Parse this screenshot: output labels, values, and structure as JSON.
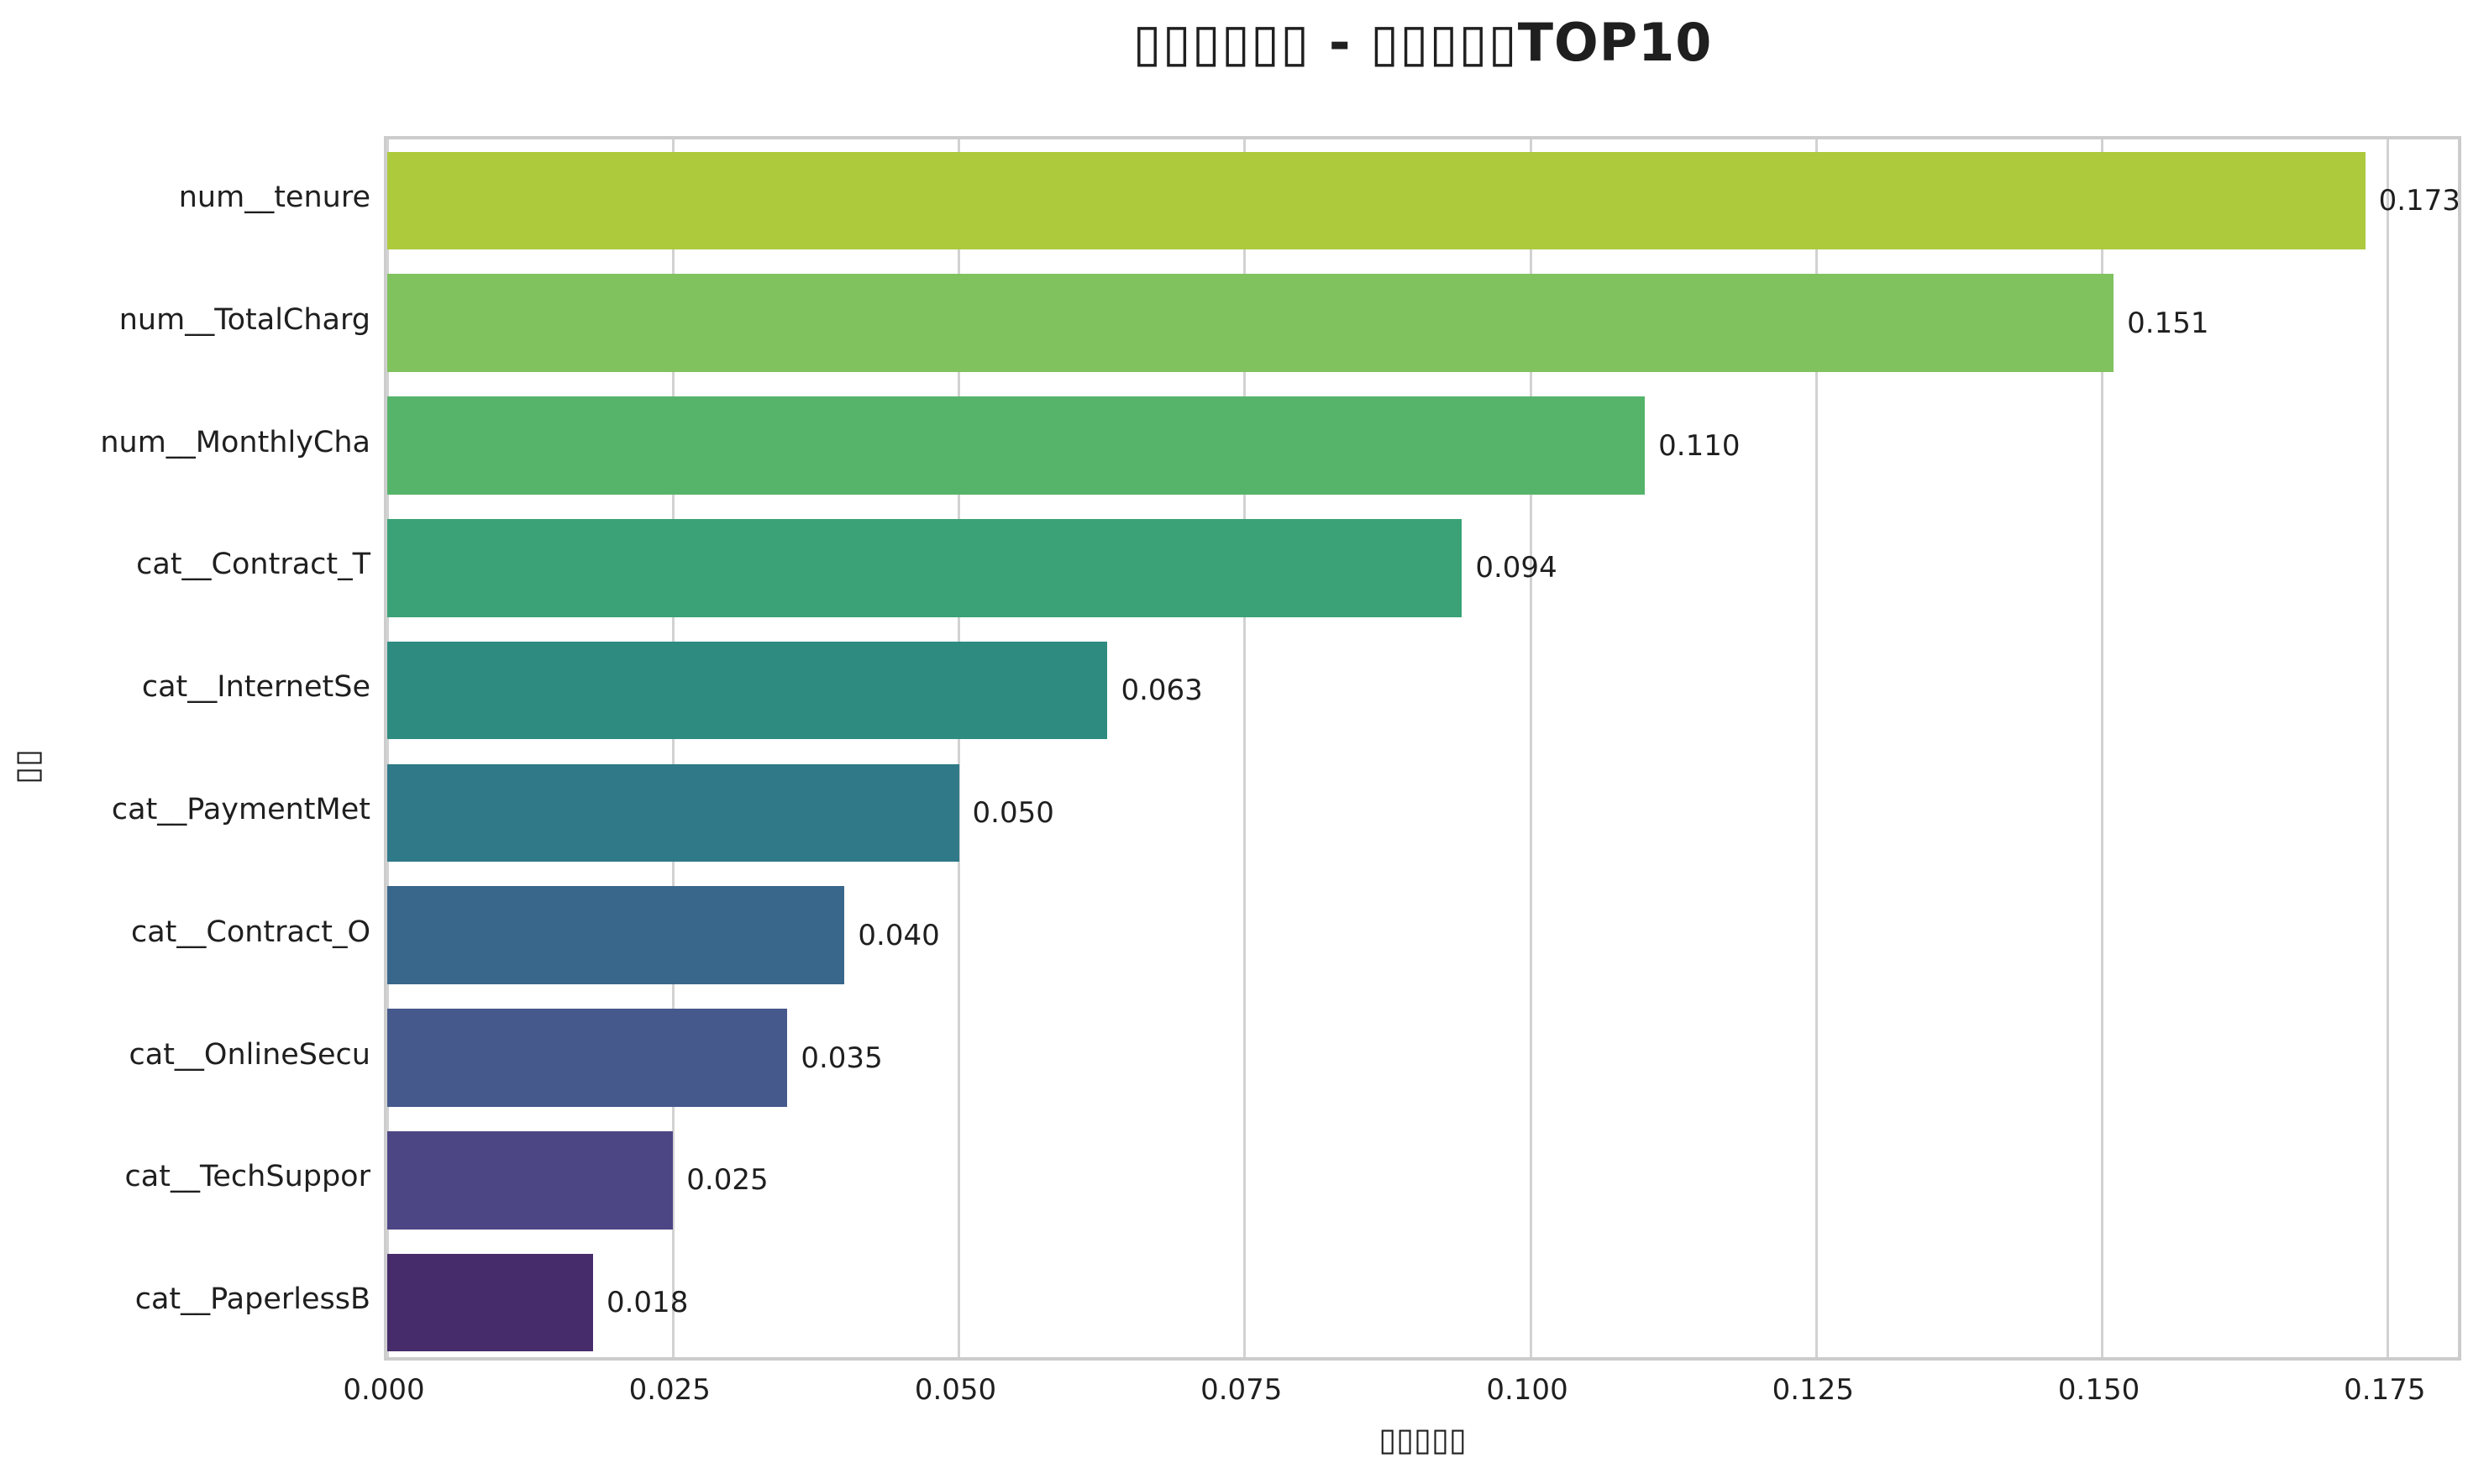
{
  "chart_data": {
    "type": "bar",
    "orientation": "horizontal",
    "title": "▯▯▯▯▯▯ - ▯▯▯▯▯TOP10",
    "title_note": "CJK glyphs missing: 6 tofu boxes, hyphen, 5 tofu boxes, then TOP10",
    "xlabel": "▯▯▯▯▯",
    "ylabel": "▯▯",
    "categories": [
      "num__tenure",
      "num__TotalCharg",
      "num__MonthlyCha",
      "cat__Contract_T",
      "cat__InternetSe",
      "cat__PaymentMet",
      "cat__Contract_O",
      "cat__OnlineSecu",
      "cat__TechSuppor",
      "cat__PaperlessB"
    ],
    "values": [
      0.173,
      0.151,
      0.11,
      0.094,
      0.063,
      0.05,
      0.04,
      0.035,
      0.025,
      0.018
    ],
    "value_labels": [
      "0.173",
      "0.151",
      "0.110",
      "0.094",
      "0.063",
      "0.050",
      "0.040",
      "0.035",
      "0.025",
      "0.018"
    ],
    "bar_colors": [
      "#adc93c",
      "#7fc25e",
      "#56b46a",
      "#3aa276",
      "#2e8b80",
      "#2f7988",
      "#39668b",
      "#46598c",
      "#4c4685",
      "#462c6a"
    ],
    "xlim": [
      0,
      0.1817
    ],
    "xticks": [
      0.0,
      0.025,
      0.05,
      0.075,
      0.1,
      0.125,
      0.15,
      0.175
    ],
    "xtick_labels": [
      "0.000",
      "0.025",
      "0.050",
      "0.075",
      "0.100",
      "0.125",
      "0.150",
      "0.175"
    ],
    "grid": "vertical-only",
    "legend": "none",
    "colors": {
      "background": "#ffffff",
      "spine": "#cccccc",
      "gridline": "#d2d2d2",
      "text": "#1f1f1f"
    }
  }
}
